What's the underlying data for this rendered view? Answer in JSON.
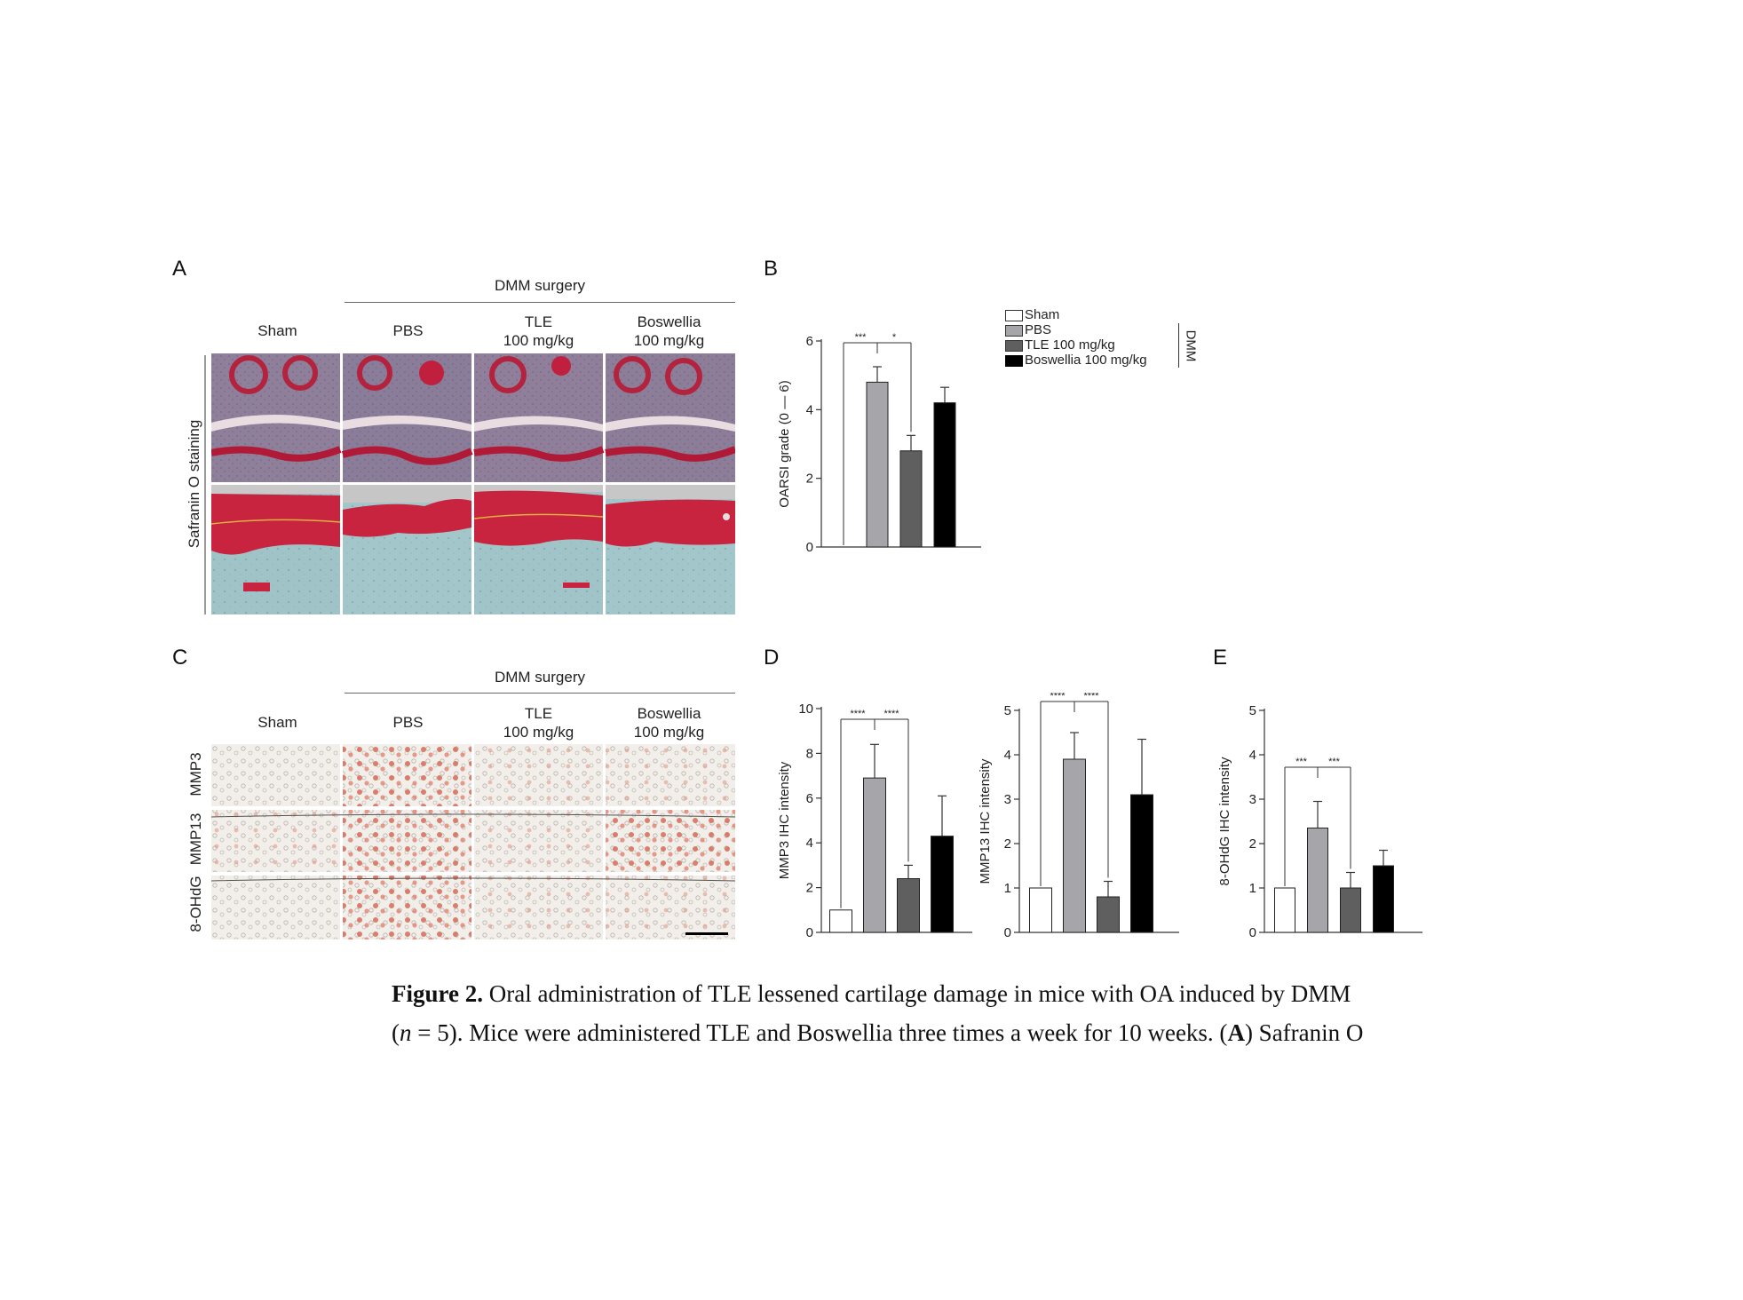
{
  "panels": {
    "A": {
      "letter": "A",
      "group_label": "DMM surgery",
      "columns": [
        {
          "line1": "Sham",
          "line2": ""
        },
        {
          "line1": "PBS",
          "line2": ""
        },
        {
          "line1": "TLE",
          "line2": "100 mg/kg"
        },
        {
          "line1": "Boswellia",
          "line2": "100 mg/kg"
        }
      ],
      "row_label": "Safranin O staining"
    },
    "B": {
      "letter": "B"
    },
    "C": {
      "letter": "C",
      "group_label": "DMM surgery",
      "columns": [
        {
          "line1": "Sham",
          "line2": ""
        },
        {
          "line1": "PBS",
          "line2": ""
        },
        {
          "line1": "TLE",
          "line2": "100 mg/kg"
        },
        {
          "line1": "Boswellia",
          "line2": "100 mg/kg"
        }
      ],
      "rows": [
        "MMP3",
        "MMP13",
        "8-OHdG"
      ]
    },
    "D": {
      "letter": "D"
    },
    "E": {
      "letter": "E"
    }
  },
  "legend": {
    "entries": [
      {
        "label": "Sham",
        "color": "#ffffff"
      },
      {
        "label": "PBS",
        "color": "#a6a6aa"
      },
      {
        "label": "TLE 100 mg/kg",
        "color": "#5f5f5f"
      },
      {
        "label": "Boswellia 100 mg/kg",
        "color": "#000000"
      }
    ],
    "group_label": "DMM"
  },
  "chart_data": [
    {
      "id": "B",
      "type": "bar",
      "categories": [
        "Sham",
        "PBS",
        "TLE 100 mg/kg",
        "Boswellia 100 mg/kg"
      ],
      "values": [
        0,
        4.8,
        2.8,
        4.2
      ],
      "errors": [
        0,
        0.45,
        0.45,
        0.45
      ],
      "colors": [
        "#ffffff",
        "#a6a6aa",
        "#5f5f5f",
        "#000000"
      ],
      "ylabel": "OARSI grade (0 — 6)",
      "ylim": [
        0,
        6
      ],
      "yticks": [
        0,
        2,
        4,
        6
      ],
      "significance": [
        {
          "from": 0,
          "to": 2,
          "label": "***",
          "label_at": 0.5
        },
        {
          "from": 1,
          "to": 2,
          "label": "*",
          "label_at": 1.5
        }
      ]
    },
    {
      "id": "D-MMP3",
      "type": "bar",
      "categories": [
        "Sham",
        "PBS",
        "TLE 100 mg/kg",
        "Boswellia 100 mg/kg"
      ],
      "values": [
        1.0,
        6.9,
        2.4,
        4.3
      ],
      "errors": [
        0,
        1.5,
        0.6,
        1.8
      ],
      "colors": [
        "#ffffff",
        "#a6a6aa",
        "#5f5f5f",
        "#000000"
      ],
      "ylabel": "MMP3 IHC intensity",
      "ylim": [
        0,
        10
      ],
      "yticks": [
        0,
        2,
        4,
        6,
        8,
        10
      ],
      "significance": [
        {
          "from": 0,
          "to": 2,
          "label": "****",
          "label_at": 0.5
        },
        {
          "from": 1,
          "to": 2,
          "label": "****",
          "label_at": 1.5
        }
      ]
    },
    {
      "id": "D-MMP13",
      "type": "bar",
      "categories": [
        "Sham",
        "PBS",
        "TLE 100 mg/kg",
        "Boswellia 100 mg/kg"
      ],
      "values": [
        1.0,
        3.9,
        0.8,
        3.1
      ],
      "errors": [
        0,
        0.6,
        0.35,
        1.25
      ],
      "colors": [
        "#ffffff",
        "#a6a6aa",
        "#5f5f5f",
        "#000000"
      ],
      "ylabel": "MMP13 IHC intensity",
      "ylim": [
        0,
        5
      ],
      "yticks": [
        0,
        1,
        2,
        3,
        4,
        5
      ],
      "significance": [
        {
          "from": 0,
          "to": 2,
          "label": "****",
          "label_at": 0.5
        },
        {
          "from": 1,
          "to": 2,
          "label": "****",
          "label_at": 1.5
        }
      ]
    },
    {
      "id": "E",
      "type": "bar",
      "categories": [
        "Sham",
        "PBS",
        "TLE 100 mg/kg",
        "Boswellia 100 mg/kg"
      ],
      "values": [
        1.0,
        2.35,
        1.0,
        1.5
      ],
      "errors": [
        0,
        0.6,
        0.35,
        0.35
      ],
      "colors": [
        "#ffffff",
        "#a6a6aa",
        "#5f5f5f",
        "#000000"
      ],
      "ylabel": "8-OHdG IHC intensity",
      "ylim": [
        0,
        5
      ],
      "yticks": [
        0,
        1,
        2,
        3,
        4,
        5
      ],
      "significance": [
        {
          "from": 0,
          "to": 2,
          "label": "***",
          "label_at": 0.5
        },
        {
          "from": 1,
          "to": 2,
          "label": "***",
          "label_at": 1.5
        }
      ]
    }
  ],
  "caption": {
    "figure_label": "Figure 2.",
    "line1_rest": " Oral administration of TLE lessened cartilage damage in mice with OA induced by DMM",
    "n_open": "(",
    "n_var": "n",
    "n_rest": " = 5). Mice were administered TLE and Boswellia three times a week for 10 weeks. (",
    "panel_ref": "A",
    "line2_end": ") Safranin O"
  }
}
